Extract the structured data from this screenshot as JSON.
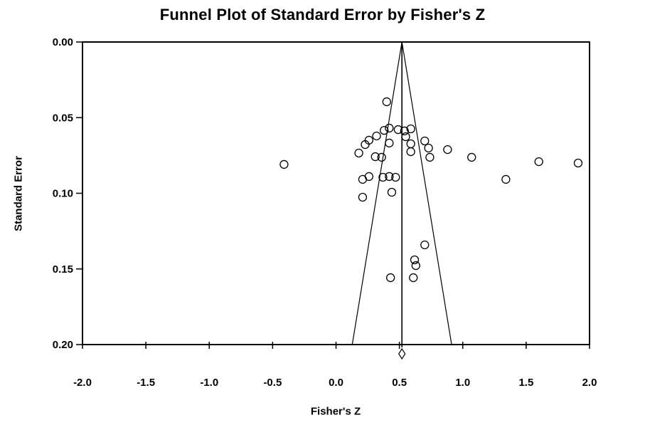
{
  "chart_data": {
    "type": "scatter",
    "title": "Funnel Plot of Standard Error by Fisher's Z",
    "xlabel": "Fisher's Z",
    "ylabel": "Standard Error",
    "xlim": [
      -2.0,
      2.0
    ],
    "ylim": [
      0.0,
      0.2
    ],
    "y_inverted": true,
    "grid": false,
    "legend": false,
    "x_tick_values": [
      -2.0,
      -1.5,
      -1.0,
      -0.5,
      0.0,
      0.5,
      1.0,
      1.5,
      2.0
    ],
    "x_tick_labels": [
      "-2.0",
      "-1.5",
      "-1.0",
      "-0.5",
      "0.0",
      "0.5",
      "1.0",
      "1.5",
      "2.0"
    ],
    "y_tick_values": [
      0.0,
      0.05,
      0.1,
      0.15,
      0.2
    ],
    "y_tick_labels": [
      "0.00",
      "0.05",
      "0.10",
      "0.15",
      "0.20"
    ],
    "funnel": {
      "center_z": 0.52,
      "ci_multiplier": 1.96,
      "max_se": 0.2
    },
    "combined_effect_diamond": {
      "z": 0.52
    },
    "marker": "open-circle",
    "colors": {
      "foreground": "#000000",
      "background": "#ffffff"
    },
    "points": [
      {
        "z": 0.4,
        "se": 0.0395
      },
      {
        "z": 0.38,
        "se": 0.0584
      },
      {
        "z": 0.42,
        "se": 0.0569
      },
      {
        "z": 0.49,
        "se": 0.0579
      },
      {
        "z": 0.54,
        "se": 0.0588
      },
      {
        "z": 0.59,
        "se": 0.0574
      },
      {
        "z": 0.55,
        "se": 0.0626
      },
      {
        "z": 0.42,
        "se": 0.0668
      },
      {
        "z": 0.59,
        "se": 0.0673
      },
      {
        "z": 0.59,
        "se": 0.0725
      },
      {
        "z": 0.32,
        "se": 0.0621
      },
      {
        "z": 0.26,
        "se": 0.0649
      },
      {
        "z": 0.23,
        "se": 0.0678
      },
      {
        "z": 0.18,
        "se": 0.0734
      },
      {
        "z": 0.31,
        "se": 0.0758
      },
      {
        "z": 0.36,
        "se": 0.0762
      },
      {
        "z": 0.7,
        "se": 0.0654
      },
      {
        "z": 0.73,
        "se": 0.0701
      },
      {
        "z": 0.74,
        "se": 0.0762
      },
      {
        "z": 0.88,
        "se": 0.0711
      },
      {
        "z": 1.07,
        "se": 0.0762
      },
      {
        "z": -0.41,
        "se": 0.0809
      },
      {
        "z": 0.21,
        "se": 0.0908
      },
      {
        "z": 0.26,
        "se": 0.0889
      },
      {
        "z": 0.37,
        "se": 0.0894
      },
      {
        "z": 0.42,
        "se": 0.0889
      },
      {
        "z": 0.47,
        "se": 0.0894
      },
      {
        "z": 0.44,
        "se": 0.0993
      },
      {
        "z": 0.21,
        "se": 0.1026
      },
      {
        "z": 1.34,
        "se": 0.0908
      },
      {
        "z": 1.6,
        "se": 0.0791
      },
      {
        "z": 1.91,
        "se": 0.08
      },
      {
        "z": 0.7,
        "se": 0.1341
      },
      {
        "z": 0.62,
        "se": 0.144
      },
      {
        "z": 0.63,
        "se": 0.1478
      },
      {
        "z": 0.61,
        "se": 0.1558
      },
      {
        "z": 0.43,
        "se": 0.1558
      }
    ]
  }
}
